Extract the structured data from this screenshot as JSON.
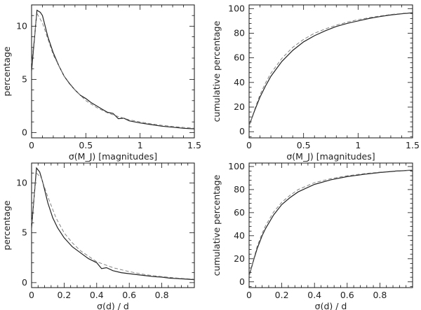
{
  "chart_data": [
    {
      "type": "line",
      "xlabel": "σ(M_J) [magnitudes]",
      "ylabel": "percentage",
      "xlim": [
        0,
        1.5
      ],
      "ylim": [
        -0.5,
        12
      ],
      "xticks": [
        0,
        0.5,
        1,
        1.5
      ],
      "xtick_labels": [
        "0",
        "0.5",
        "1",
        "1.5"
      ],
      "yticks": [
        0,
        5,
        10
      ],
      "ytick_labels": [
        "0",
        "5",
        "10"
      ],
      "grid": false,
      "series": [
        {
          "style": "solid",
          "x": [
            0,
            0.05,
            0.08,
            0.1,
            0.12,
            0.15,
            0.2,
            0.25,
            0.3,
            0.35,
            0.4,
            0.45,
            0.5,
            0.55,
            0.6,
            0.65,
            0.7,
            0.75,
            0.8,
            0.85,
            0.9,
            1.0,
            1.1,
            1.2,
            1.3,
            1.4,
            1.5
          ],
          "y": [
            5.8,
            11.5,
            11.3,
            11.0,
            10.2,
            9.0,
            7.5,
            6.3,
            5.3,
            4.6,
            4.0,
            3.5,
            3.2,
            2.8,
            2.5,
            2.2,
            1.9,
            1.8,
            1.3,
            1.35,
            1.1,
            0.9,
            0.75,
            0.6,
            0.5,
            0.4,
            0.35
          ]
        },
        {
          "style": "dashed",
          "x": [
            0,
            0.05,
            0.1,
            0.15,
            0.2,
            0.3,
            0.4,
            0.5,
            0.6,
            0.7,
            0.8,
            0.9,
            1.0,
            1.1,
            1.2,
            1.3,
            1.4,
            1.5
          ],
          "y": [
            6.5,
            11.2,
            10.3,
            8.8,
            7.3,
            5.3,
            4.0,
            3.0,
            2.35,
            1.85,
            1.5,
            1.2,
            1.0,
            0.82,
            0.68,
            0.57,
            0.48,
            0.4
          ]
        }
      ]
    },
    {
      "type": "line",
      "xlabel": "σ(M_J) [magnitudes]",
      "ylabel": "cumulative percentage",
      "xlim": [
        0,
        1.5
      ],
      "ylim": [
        -5,
        103
      ],
      "xticks": [
        0,
        0.5,
        1,
        1.5
      ],
      "xtick_labels": [
        "0",
        "0.5",
        "1",
        "1.5"
      ],
      "yticks": [
        0,
        20,
        40,
        60,
        80,
        100
      ],
      "ytick_labels": [
        "0",
        "20",
        "40",
        "60",
        "80",
        "100"
      ],
      "grid": false,
      "series": [
        {
          "style": "solid",
          "x": [
            0,
            0.05,
            0.1,
            0.15,
            0.2,
            0.3,
            0.4,
            0.5,
            0.6,
            0.7,
            0.8,
            0.9,
            1.0,
            1.1,
            1.2,
            1.3,
            1.4,
            1.5
          ],
          "y": [
            5,
            17,
            28,
            37,
            45,
            57,
            66,
            73,
            78,
            82,
            85.5,
            88,
            90,
            92,
            93.5,
            94.8,
            95.8,
            96.5
          ]
        },
        {
          "style": "dashed",
          "x": [
            0,
            0.05,
            0.1,
            0.15,
            0.2,
            0.3,
            0.4,
            0.5,
            0.6,
            0.7,
            0.8,
            0.9,
            1.0,
            1.1,
            1.2,
            1.3,
            1.4,
            1.5
          ],
          "y": [
            5,
            18,
            30,
            39.5,
            47.5,
            59.5,
            68.5,
            75,
            80,
            83.5,
            86.5,
            89,
            91,
            92.6,
            94,
            95.2,
            96.1,
            96.8
          ]
        }
      ]
    },
    {
      "type": "line",
      "xlabel": "σ(d) / d",
      "ylabel": "percentage",
      "xlim": [
        0,
        1.0
      ],
      "ylim": [
        -0.5,
        12
      ],
      "xticks": [
        0,
        0.2,
        0.4,
        0.6,
        0.8
      ],
      "xtick_labels": [
        "0",
        "0.2",
        "0.4",
        "0.6",
        "0.8"
      ],
      "yticks": [
        0,
        5,
        10
      ],
      "ytick_labels": [
        "0",
        "5",
        "10"
      ],
      "grid": false,
      "series": [
        {
          "style": "solid",
          "x": [
            0,
            0.03,
            0.05,
            0.07,
            0.1,
            0.13,
            0.16,
            0.2,
            0.25,
            0.3,
            0.35,
            0.4,
            0.43,
            0.46,
            0.5,
            0.55,
            0.6,
            0.65,
            0.7,
            0.75,
            0.8,
            0.85,
            0.9,
            0.95,
            1.0
          ],
          "y": [
            5.5,
            11.5,
            11.1,
            10.0,
            8.0,
            6.5,
            5.5,
            4.5,
            3.6,
            3.0,
            2.4,
            2.0,
            1.4,
            1.5,
            1.2,
            1.0,
            0.9,
            0.8,
            0.7,
            0.6,
            0.55,
            0.45,
            0.4,
            0.35,
            0.3
          ]
        },
        {
          "style": "dashed",
          "x": [
            0,
            0.03,
            0.06,
            0.1,
            0.15,
            0.2,
            0.25,
            0.3,
            0.4,
            0.5,
            0.6,
            0.7,
            0.8,
            0.9,
            1.0
          ],
          "y": [
            6.0,
            11.0,
            10.5,
            8.6,
            6.5,
            5.0,
            4.0,
            3.2,
            2.1,
            1.5,
            1.1,
            0.8,
            0.6,
            0.45,
            0.35
          ]
        }
      ]
    },
    {
      "type": "line",
      "xlabel": "σ(d) / d",
      "ylabel": "cumulative percentage",
      "xlim": [
        0,
        1.0
      ],
      "ylim": [
        -5,
        103
      ],
      "xticks": [
        0,
        0.2,
        0.4,
        0.6,
        0.8
      ],
      "xtick_labels": [
        "0",
        "0.2",
        "0.4",
        "0.6",
        "0.8"
      ],
      "yticks": [
        0,
        20,
        40,
        60,
        80,
        100
      ],
      "ytick_labels": [
        "0",
        "20",
        "40",
        "60",
        "80",
        "100"
      ],
      "grid": false,
      "series": [
        {
          "style": "solid",
          "x": [
            0,
            0.03,
            0.05,
            0.08,
            0.1,
            0.15,
            0.2,
            0.25,
            0.3,
            0.4,
            0.5,
            0.6,
            0.7,
            0.8,
            0.9,
            1.0
          ],
          "y": [
            5,
            20,
            29,
            40,
            46,
            58,
            67,
            73,
            78,
            84.5,
            88.5,
            91.2,
            93.2,
            94.8,
            96,
            96.8
          ]
        },
        {
          "style": "dashed",
          "x": [
            0,
            0.03,
            0.05,
            0.08,
            0.1,
            0.15,
            0.2,
            0.25,
            0.3,
            0.4,
            0.5,
            0.6,
            0.7,
            0.8,
            0.9,
            1.0
          ],
          "y": [
            5,
            21,
            31,
            42,
            48.5,
            60.5,
            69,
            75,
            80,
            86,
            89.5,
            92,
            93.8,
            95.2,
            96.3,
            97
          ]
        }
      ]
    }
  ]
}
